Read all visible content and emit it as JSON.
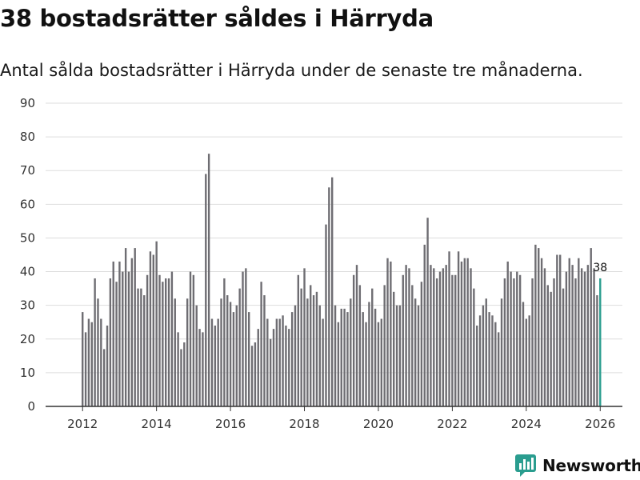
{
  "header": {
    "title": "38 bostadsrätter såldes i Härryda",
    "subtitle": "Antal sålda bostadsrätter i Härryda under de senaste tre månaderna."
  },
  "colors": {
    "bar": "#6e6d72",
    "highlight": "#2a9d8f",
    "grid": "#dddddd",
    "axis": "#333333",
    "brand": "#2a9d8f"
  },
  "branding": {
    "name": "Newsworthy"
  },
  "chart_data": {
    "type": "bar",
    "title": "38 bostadsrätter såldes i Härryda",
    "subtitle": "Antal sålda bostadsrätter i Härryda under de senaste tre månaderna.",
    "xlabel": "",
    "ylabel": "",
    "ylim": [
      0,
      90
    ],
    "yticks": [
      0,
      10,
      20,
      30,
      40,
      50,
      60,
      70,
      80,
      90
    ],
    "xlim": [
      2011,
      2026.6
    ],
    "xticks": [
      2012,
      2014,
      2016,
      2018,
      2020,
      2022,
      2024,
      2026
    ],
    "grid": true,
    "period": "monthly, rolling three-month totals",
    "start": 2012.0,
    "step": 0.0833333,
    "values": [
      28,
      22,
      26,
      25,
      38,
      32,
      26,
      17,
      24,
      38,
      43,
      37,
      43,
      40,
      47,
      40,
      44,
      47,
      35,
      35,
      33,
      39,
      46,
      45,
      49,
      39,
      37,
      38,
      38,
      40,
      32,
      22,
      17,
      19,
      32,
      40,
      39,
      30,
      23,
      22,
      69,
      75,
      26,
      24,
      26,
      32,
      38,
      33,
      31,
      28,
      30,
      35,
      40,
      41,
      28,
      18,
      19,
      23,
      37,
      33,
      26,
      20,
      23,
      26,
      26,
      27,
      24,
      23,
      28,
      30,
      39,
      35,
      41,
      32,
      36,
      33,
      34,
      30,
      26,
      54,
      65,
      68,
      30,
      25,
      29,
      29,
      28,
      32,
      39,
      42,
      36,
      28,
      25,
      31,
      35,
      29,
      25,
      26,
      36,
      44,
      43,
      34,
      30,
      30,
      39,
      42,
      41,
      36,
      32,
      30,
      37,
      48,
      56,
      42,
      41,
      38,
      40,
      41,
      42,
      46,
      39,
      39,
      46,
      43,
      44,
      44,
      41,
      35,
      24,
      27,
      30,
      32,
      28,
      27,
      25,
      22,
      32,
      38,
      43,
      40,
      38,
      40,
      39,
      31,
      26,
      27,
      38,
      48,
      47,
      44,
      41,
      36,
      34,
      38,
      45,
      45,
      35,
      40,
      44,
      42,
      38,
      44,
      41,
      40,
      42,
      47,
      41,
      33,
      38
    ],
    "highlight_last": true,
    "annotations": [
      {
        "label": "38"
      }
    ]
  }
}
